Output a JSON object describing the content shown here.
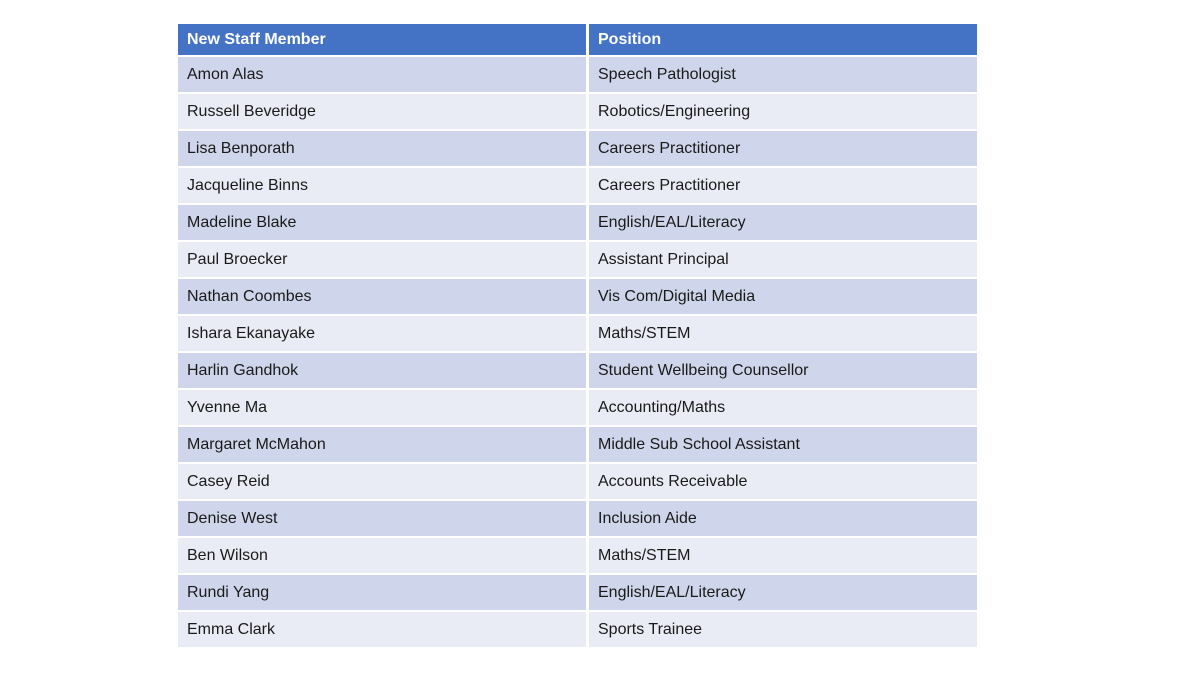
{
  "table": {
    "columns": {
      "name_header": "New Staff Member",
      "position_header": "Position"
    },
    "rows": [
      {
        "name": "Amon Alas",
        "position": "Speech Pathologist"
      },
      {
        "name": "Russell Beveridge",
        "position": "Robotics/Engineering"
      },
      {
        "name": "Lisa Benporath",
        "position": "Careers Practitioner"
      },
      {
        "name": "Jacqueline Binns",
        "position": "Careers Practitioner"
      },
      {
        "name": "Madeline Blake",
        "position": "English/EAL/Literacy"
      },
      {
        "name": "Paul Broecker",
        "position": "Assistant Principal"
      },
      {
        "name": "Nathan Coombes",
        "position": "Vis Com/Digital Media"
      },
      {
        "name": "Ishara Ekanayake",
        "position": "Maths/STEM"
      },
      {
        "name": "Harlin Gandhok",
        "position": "Student Wellbeing Counsellor"
      },
      {
        "name": "Yvenne Ma",
        "position": "Accounting/Maths"
      },
      {
        "name": "Margaret McMahon",
        "position": "Middle Sub School Assistant"
      },
      {
        "name": "Casey Reid",
        "position": "Accounts Receivable"
      },
      {
        "name": "Denise West",
        "position": "Inclusion Aide"
      },
      {
        "name": "Ben Wilson",
        "position": "Maths/STEM"
      },
      {
        "name": "Rundi Yang",
        "position": "English/EAL/Literacy"
      },
      {
        "name": "Emma Clark",
        "position": "Sports Trainee"
      }
    ],
    "colors": {
      "header_bg": "#4472C4",
      "header_text": "#FFFFFF",
      "band_dark": "#CFD5EA",
      "band_light": "#E9EBF5",
      "body_text": "#1A1A1A",
      "grid": "#FFFFFF"
    }
  }
}
